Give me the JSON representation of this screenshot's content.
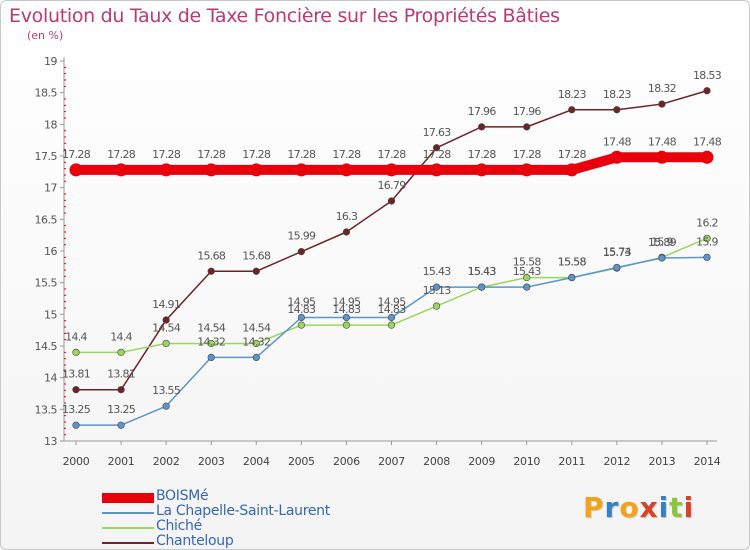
{
  "chart_data": {
    "type": "line",
    "title": "Evolution du Taux de Taxe Foncière sur les Propriétés Bâties",
    "ylabel": "(en %)",
    "xlabel": "",
    "x": [
      "2000",
      "2001",
      "2002",
      "2003",
      "2004",
      "2005",
      "2006",
      "2007",
      "2008",
      "2009",
      "2010",
      "2011",
      "2012",
      "2013",
      "2014"
    ],
    "ylim": [
      13,
      19
    ],
    "yticks": [
      "13",
      "13.5",
      "14",
      "14.5",
      "15",
      "15.5",
      "16",
      "16.5",
      "17",
      "17.5",
      "18",
      "18.5",
      "19"
    ],
    "grid": false,
    "legend_position": "bottom-left",
    "series": [
      {
        "name": "BOISMé",
        "color": "#e8000b",
        "values": [
          17.28,
          17.28,
          17.28,
          17.28,
          17.28,
          17.28,
          17.28,
          17.28,
          17.28,
          17.28,
          17.28,
          17.28,
          17.48,
          17.48,
          17.48
        ],
        "labels": [
          "17.28",
          "17.28",
          "17.28",
          "17.28",
          "17.28",
          "17.28",
          "17.28",
          "17.28",
          "17.28",
          "17.28",
          "17.28",
          "17.28",
          "17.48",
          "17.48",
          "17.48"
        ]
      },
      {
        "name": "La Chapelle-Saint-Laurent",
        "color": "#5b95cc",
        "values": [
          13.25,
          13.25,
          13.55,
          14.32,
          14.32,
          14.95,
          14.95,
          14.95,
          15.43,
          15.43,
          15.43,
          15.58,
          15.74,
          15.89,
          15.9
        ],
        "labels": [
          "13.25",
          "13.25",
          "13.55",
          "14.32",
          "14.32",
          "14.95",
          "14.95",
          "14.95",
          "15.43",
          "15.43",
          "15.43",
          "15.58",
          "15.74",
          "15.89",
          "15.9"
        ]
      },
      {
        "name": "Chiché",
        "color": "#9ad65a",
        "values": [
          14.4,
          14.4,
          14.54,
          14.54,
          14.54,
          14.83,
          14.83,
          14.83,
          15.13,
          15.43,
          15.58,
          15.58,
          15.73,
          15.9,
          16.2
        ],
        "labels": [
          "14.4",
          "14.4",
          "14.54",
          "14.54",
          "14.54",
          "14.83",
          "14.83",
          "14.83",
          "15.13",
          "15.43",
          "15.58",
          "15.58",
          "15.73",
          "15.9",
          "16.2"
        ]
      },
      {
        "name": "Chanteloup",
        "color": "#6e2327",
        "values": [
          13.81,
          13.81,
          14.91,
          15.68,
          15.68,
          15.99,
          16.3,
          16.79,
          17.63,
          17.96,
          17.96,
          18.23,
          18.23,
          18.32,
          18.53
        ],
        "labels": [
          "13.81",
          "13.81",
          "14.91",
          "15.68",
          "15.68",
          "15.99",
          "16.3",
          "16.79",
          "17.63",
          "17.96",
          "17.96",
          "18.23",
          "18.23",
          "18.32",
          "18.53"
        ]
      }
    ]
  },
  "logo": {
    "letters": [
      "P",
      "r",
      "o",
      "x",
      "i",
      "t",
      "i"
    ],
    "colors": [
      "#f2a31b",
      "#3a7fc4",
      "#f2a31b",
      "#d9412b",
      "#3a7fc4",
      "#8cc63f",
      "#d9412b"
    ]
  }
}
